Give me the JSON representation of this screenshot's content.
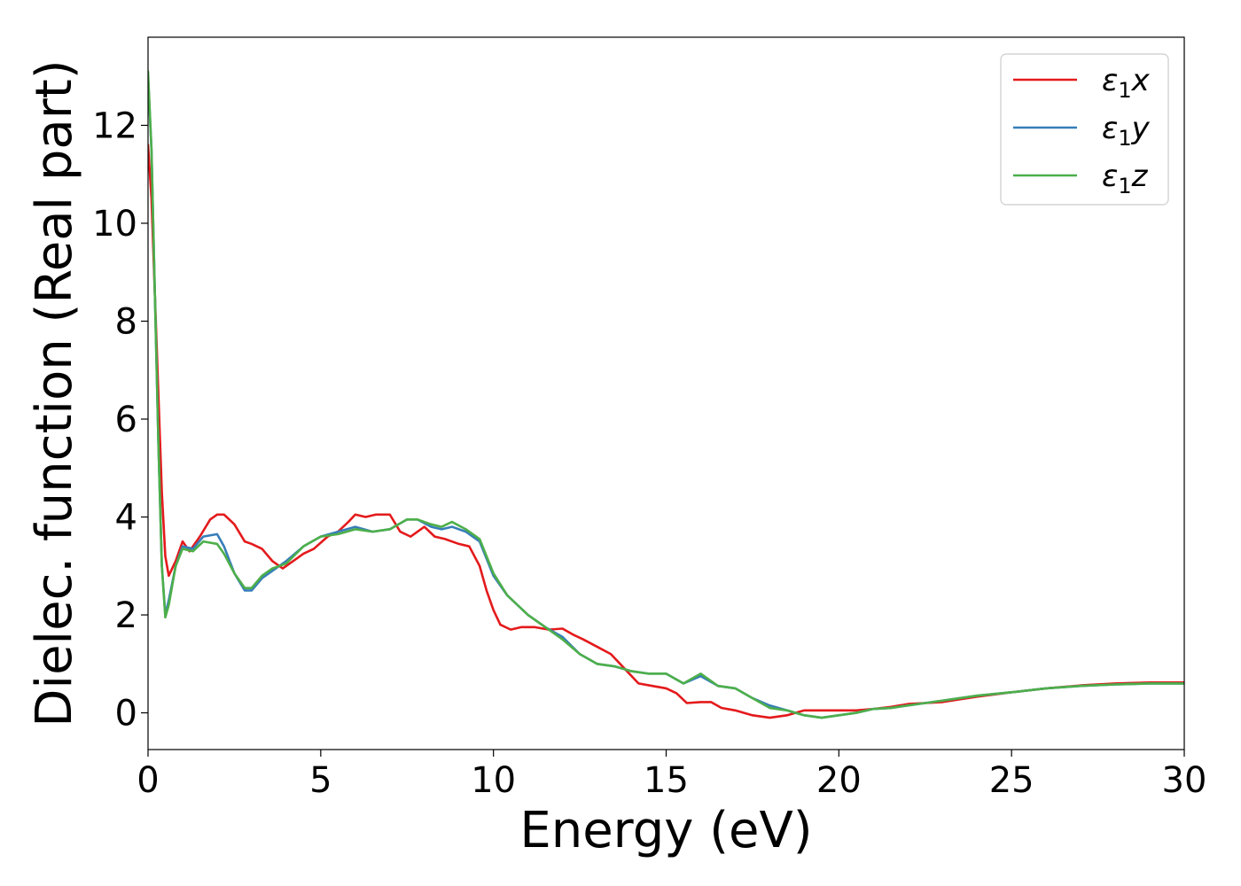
{
  "chart_data": {
    "type": "line",
    "xlabel": "Energy (eV)",
    "ylabel": "Dielec. function (Real part)",
    "xlim": [
      0,
      30
    ],
    "ylim": [
      -0.75,
      13.8
    ],
    "xticks": [
      0,
      5,
      10,
      15,
      20,
      25,
      30
    ],
    "yticks": [
      0,
      2,
      4,
      6,
      8,
      10,
      12
    ],
    "grid": false,
    "legend_position": "top-right",
    "series": [
      {
        "name": "ε₁x",
        "legend": {
          "base": "ε",
          "sub": "1",
          "axis": "x"
        },
        "color": "#e41a1c",
        "x": [
          0,
          0.1,
          0.2,
          0.3,
          0.4,
          0.5,
          0.6,
          0.8,
          1.0,
          1.2,
          1.5,
          1.8,
          2.0,
          2.2,
          2.5,
          2.8,
          3.0,
          3.3,
          3.6,
          3.9,
          4.2,
          4.5,
          4.8,
          5.2,
          5.5,
          5.8,
          6.0,
          6.3,
          6.6,
          7.0,
          7.3,
          7.6,
          8.0,
          8.3,
          8.6,
          9.0,
          9.3,
          9.6,
          9.8,
          10.0,
          10.2,
          10.5,
          10.8,
          11.2,
          11.6,
          12.0,
          12.3,
          12.6,
          13.0,
          13.4,
          13.8,
          14.2,
          14.6,
          15.0,
          15.3,
          15.6,
          16.0,
          16.3,
          16.6,
          17.0,
          17.5,
          18.0,
          18.5,
          19.0,
          19.5,
          20.0,
          20.5,
          21.0,
          21.5,
          22.0,
          22.5,
          23.0,
          24.0,
          25.0,
          26.0,
          27.0,
          28.0,
          29.0,
          30.0
        ],
        "y": [
          11.6,
          10.5,
          8.5,
          6.5,
          4.5,
          3.2,
          2.8,
          3.1,
          3.5,
          3.3,
          3.6,
          3.95,
          4.05,
          4.05,
          3.85,
          3.5,
          3.45,
          3.35,
          3.1,
          2.95,
          3.1,
          3.25,
          3.35,
          3.6,
          3.7,
          3.9,
          4.05,
          4.0,
          4.05,
          4.05,
          3.7,
          3.6,
          3.8,
          3.6,
          3.55,
          3.45,
          3.4,
          3.0,
          2.5,
          2.1,
          1.8,
          1.7,
          1.75,
          1.75,
          1.7,
          1.72,
          1.6,
          1.5,
          1.35,
          1.2,
          0.9,
          0.6,
          0.55,
          0.5,
          0.4,
          0.2,
          0.22,
          0.22,
          0.1,
          0.05,
          -0.05,
          -0.1,
          -0.05,
          0.05,
          0.05,
          0.05,
          0.05,
          0.08,
          0.12,
          0.18,
          0.2,
          0.22,
          0.33,
          0.42,
          0.5,
          0.56,
          0.6,
          0.62,
          0.62
        ]
      },
      {
        "name": "ε₁y",
        "legend": {
          "base": "ε",
          "sub": "1",
          "axis": "y"
        },
        "color": "#377eb8",
        "x": [
          0,
          0.1,
          0.2,
          0.3,
          0.4,
          0.5,
          0.6,
          0.8,
          1.0,
          1.3,
          1.6,
          2.0,
          2.2,
          2.5,
          2.8,
          3.0,
          3.3,
          3.6,
          4.0,
          4.5,
          5.0,
          5.5,
          6.0,
          6.5,
          7.0,
          7.5,
          7.8,
          8.2,
          8.5,
          8.8,
          9.2,
          9.6,
          10.0,
          10.4,
          11.0,
          11.5,
          12.0,
          12.5,
          13.0,
          13.5,
          14.0,
          14.5,
          15.0,
          15.5,
          16.0,
          16.5,
          17.0,
          17.5,
          18.0,
          18.5,
          19.0,
          19.5,
          20.0,
          20.5,
          21.0,
          21.5,
          22.0,
          23.0,
          24.0,
          25.0,
          26.0,
          27.0,
          28.0,
          29.0,
          30.0
        ],
        "y": [
          13.0,
          11.5,
          8.5,
          5.5,
          3.0,
          2.0,
          2.3,
          3.0,
          3.4,
          3.35,
          3.6,
          3.65,
          3.4,
          2.85,
          2.5,
          2.5,
          2.75,
          2.9,
          3.1,
          3.4,
          3.6,
          3.7,
          3.8,
          3.7,
          3.75,
          3.95,
          3.95,
          3.8,
          3.75,
          3.8,
          3.7,
          3.5,
          2.8,
          2.4,
          2.0,
          1.75,
          1.55,
          1.2,
          1.0,
          0.95,
          0.85,
          0.8,
          0.8,
          0.6,
          0.75,
          0.55,
          0.5,
          0.3,
          0.15,
          0.05,
          -0.05,
          -0.1,
          -0.05,
          0.0,
          0.08,
          0.1,
          0.15,
          0.25,
          0.35,
          0.42,
          0.5,
          0.55,
          0.58,
          0.6,
          0.6
        ]
      },
      {
        "name": "ε₁z",
        "legend": {
          "base": "ε",
          "sub": "1",
          "axis": "z"
        },
        "color": "#4daf4a",
        "x": [
          0,
          0.1,
          0.2,
          0.3,
          0.4,
          0.5,
          0.6,
          0.8,
          1.0,
          1.3,
          1.6,
          2.0,
          2.2,
          2.5,
          2.8,
          3.0,
          3.3,
          3.6,
          4.0,
          4.5,
          5.0,
          5.5,
          6.0,
          6.5,
          7.0,
          7.5,
          7.8,
          8.2,
          8.5,
          8.8,
          9.2,
          9.6,
          10.0,
          10.4,
          11.0,
          11.5,
          12.0,
          12.5,
          13.0,
          13.5,
          14.0,
          14.5,
          15.0,
          15.5,
          16.0,
          16.5,
          17.0,
          17.5,
          18.0,
          18.5,
          19.0,
          19.5,
          20.0,
          20.5,
          21.0,
          21.5,
          22.0,
          23.0,
          24.0,
          25.0,
          26.0,
          27.0,
          28.0,
          29.0,
          30.0
        ],
        "y": [
          13.1,
          11.5,
          8.5,
          5.5,
          3.0,
          1.95,
          2.2,
          3.0,
          3.35,
          3.3,
          3.5,
          3.45,
          3.25,
          2.85,
          2.55,
          2.55,
          2.8,
          2.95,
          3.05,
          3.4,
          3.6,
          3.65,
          3.75,
          3.7,
          3.75,
          3.95,
          3.95,
          3.85,
          3.8,
          3.9,
          3.75,
          3.55,
          2.85,
          2.4,
          2.0,
          1.75,
          1.5,
          1.2,
          1.0,
          0.95,
          0.85,
          0.8,
          0.8,
          0.6,
          0.8,
          0.55,
          0.5,
          0.3,
          0.1,
          0.05,
          -0.05,
          -0.1,
          -0.05,
          0.0,
          0.08,
          0.1,
          0.15,
          0.25,
          0.35,
          0.42,
          0.5,
          0.55,
          0.58,
          0.6,
          0.6
        ]
      }
    ]
  }
}
